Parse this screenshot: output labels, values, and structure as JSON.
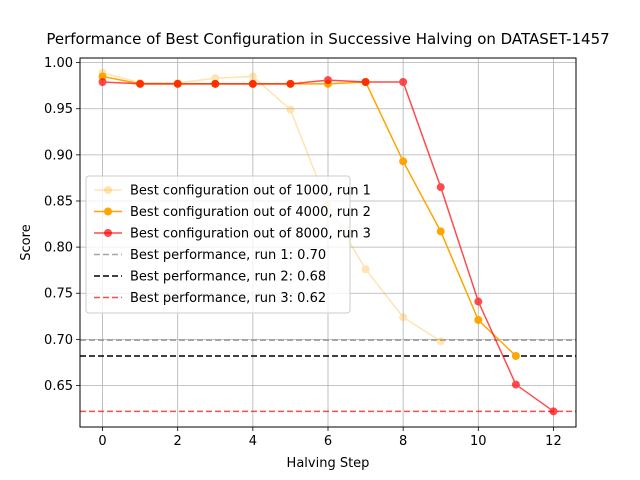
{
  "chart_data": {
    "type": "line",
    "title": "Performance of Best Configuration in Successive Halving on DATASET-1457",
    "xlabel": "Halving Step",
    "ylabel": "Score",
    "xlim": [
      -0.6,
      12.6
    ],
    "ylim": [
      0.605,
      1.005
    ],
    "xticks": [
      0,
      2,
      4,
      6,
      8,
      10,
      12
    ],
    "yticks": [
      0.65,
      0.7,
      0.75,
      0.8,
      0.85,
      0.9,
      0.95,
      1.0
    ],
    "ytick_labels": [
      "0.65",
      "0.70",
      "0.75",
      "0.80",
      "0.85",
      "0.90",
      "0.95",
      "1.00"
    ],
    "grid": true,
    "legend_position": "center-left",
    "series": [
      {
        "name": "Best configuration out of 1000, run 1",
        "color": "#FFA500",
        "opacity": 0.3,
        "marker": "circle",
        "x": [
          0,
          1,
          2,
          3,
          4,
          5,
          6,
          7,
          8,
          9
        ],
        "y": [
          0.989,
          0.978,
          0.978,
          0.983,
          0.985,
          0.949,
          0.845,
          0.776,
          0.724,
          0.698
        ]
      },
      {
        "name": "Best configuration out of 4000, run 2",
        "color": "#FFA500",
        "opacity": 1.0,
        "marker": "circle",
        "x": [
          0,
          1,
          2,
          3,
          4,
          5,
          6,
          7,
          8,
          9,
          10,
          11
        ],
        "y": [
          0.985,
          0.977,
          0.977,
          0.977,
          0.977,
          0.977,
          0.977,
          0.979,
          0.893,
          0.817,
          0.721,
          0.682
        ]
      },
      {
        "name": "Best configuration out of 8000, run 3",
        "color": "#FF0000",
        "opacity": 0.7,
        "marker": "circle",
        "x": [
          0,
          1,
          2,
          3,
          4,
          5,
          6,
          7,
          8,
          9,
          10,
          11,
          12
        ],
        "y": [
          0.979,
          0.977,
          0.977,
          0.977,
          0.977,
          0.977,
          0.981,
          0.979,
          0.979,
          0.865,
          0.741,
          0.651,
          0.622
        ]
      }
    ],
    "hlines": [
      {
        "name": "Best performance, run 1: 0.70",
        "y": 0.699,
        "color": "#808080",
        "opacity": 0.7,
        "dash": "dashed"
      },
      {
        "name": "Best performance, run 2: 0.68",
        "y": 0.682,
        "color": "#000000",
        "opacity": 1.0,
        "dash": "dashed"
      },
      {
        "name": "Best performance, run 3: 0.62",
        "y": 0.622,
        "color": "#FF0000",
        "opacity": 0.7,
        "dash": "dashed"
      }
    ]
  }
}
